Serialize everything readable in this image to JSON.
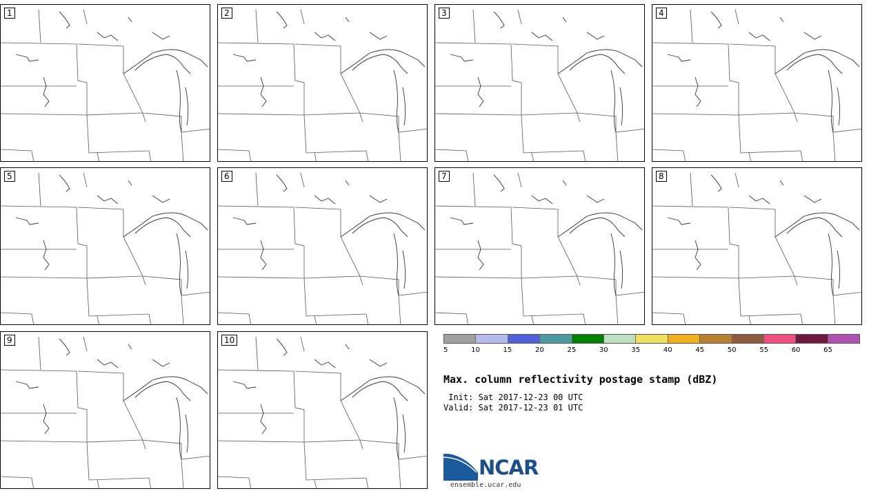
{
  "panels": [
    {
      "label": "1"
    },
    {
      "label": "2"
    },
    {
      "label": "3"
    },
    {
      "label": "4"
    },
    {
      "label": "5"
    },
    {
      "label": "6"
    },
    {
      "label": "7"
    },
    {
      "label": "8"
    },
    {
      "label": "9"
    },
    {
      "label": "10"
    }
  ],
  "colorbar": {
    "colors": [
      "#a0a0a0",
      "#b4bcea",
      "#5060d8",
      "#4c9aa0",
      "#008000",
      "#bde0c0",
      "#f0e060",
      "#f0b020",
      "#b88030",
      "#8c5a3c",
      "#f05080",
      "#6e1a40",
      "#b050b0"
    ],
    "ticks": [
      "5",
      "10",
      "15",
      "20",
      "25",
      "30",
      "35",
      "40",
      "45",
      "50",
      "55",
      "60",
      "65"
    ]
  },
  "title": "Max. column reflectivity postage stamp (dBZ)",
  "init": " Init: Sat 2017-12-23 00 UTC",
  "valid": "Valid: Sat 2017-12-23 01 UTC",
  "logo": {
    "text": "NCAR",
    "site": "ensemble.ucar.edu",
    "color": "#1a4e8c"
  }
}
